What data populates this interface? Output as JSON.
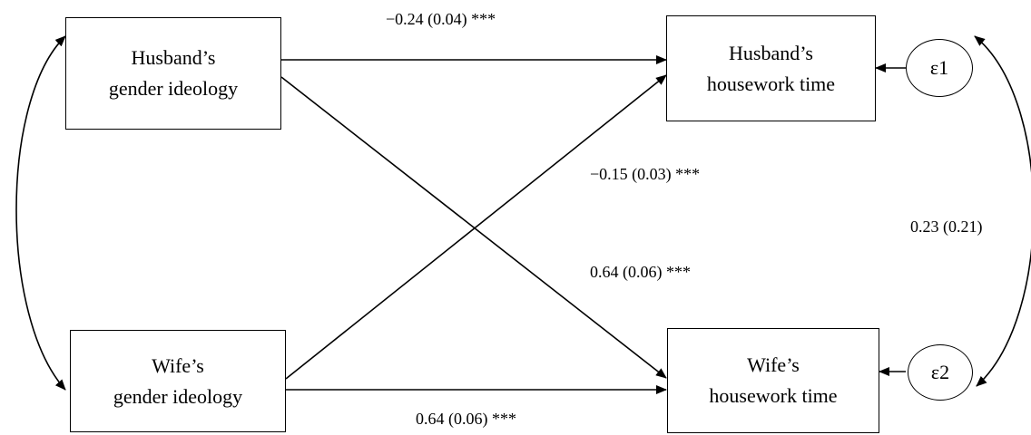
{
  "nodes": {
    "husband_ideology": {
      "line1": "Husband’s",
      "line2": "gender ideology"
    },
    "wife_ideology": {
      "line1": "Wife’s",
      "line2": "gender ideology"
    },
    "husband_housework": {
      "line1": "Husband’s",
      "line2": "housework time"
    },
    "wife_housework": {
      "line1": "Wife’s",
      "line2": "housework time"
    },
    "error1": "ε1",
    "error2": "ε2"
  },
  "paths": {
    "husband_to_husband": "−0.24 (0.04) ***",
    "wife_to_husband": "−0.15 (0.03) ***",
    "husband_to_wife": "0.64 (0.06) ***",
    "wife_to_wife": "0.64 (0.06) ***",
    "error_covariance": "0.23 (0.21)"
  }
}
